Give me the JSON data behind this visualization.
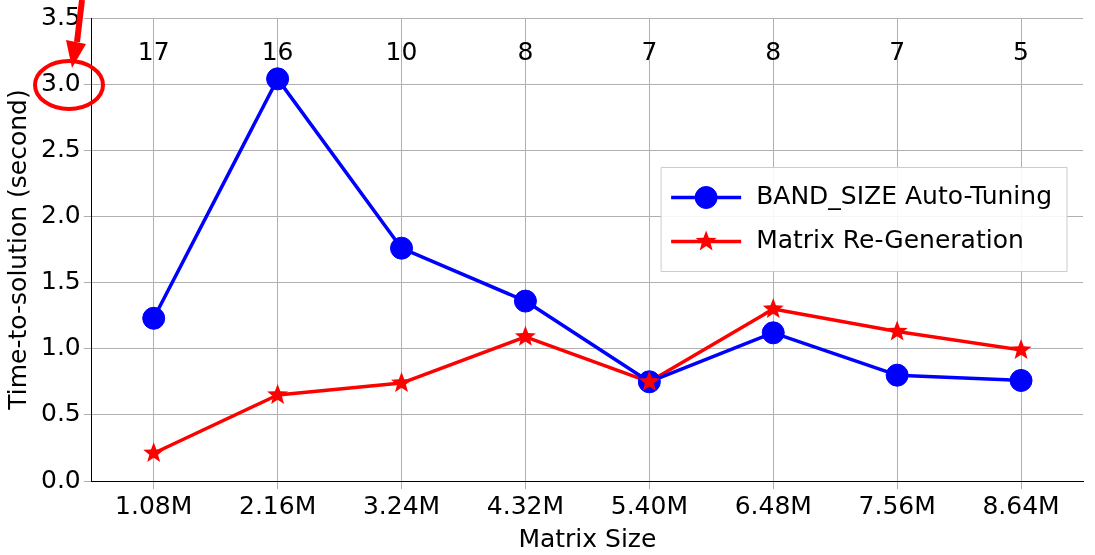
{
  "chart_data": {
    "type": "line",
    "xlabel": "Matrix Size",
    "ylabel": "Time-to-solution (second)",
    "categories": [
      "1.08M",
      "2.16M",
      "3.24M",
      "4.32M",
      "5.40M",
      "6.48M",
      "7.56M",
      "8.64M"
    ],
    "series": [
      {
        "name": "BAND_SIZE Auto-Tuning",
        "color": "#0000ff",
        "marker": "circle",
        "values": [
          1.23,
          3.04,
          1.76,
          1.36,
          0.75,
          1.12,
          0.8,
          0.76
        ]
      },
      {
        "name": "Matrix Re-Generation",
        "color": "#ff0000",
        "marker": "star",
        "values": [
          0.21,
          0.65,
          0.74,
          1.09,
          0.75,
          1.3,
          1.13,
          0.99
        ]
      }
    ],
    "ylim": [
      0,
      3.5
    ],
    "yticks": [
      {
        "value": 0,
        "label": "0.0"
      },
      {
        "value": 0.5,
        "label": "0.5"
      },
      {
        "value": 1,
        "label": "1.0"
      },
      {
        "value": 1.5,
        "label": "1.5"
      },
      {
        "value": 2,
        "label": "2.0"
      },
      {
        "value": 2.5,
        "label": "2.5"
      },
      {
        "value": 3,
        "label": "3.0"
      },
      {
        "value": 3.5,
        "label": "3.5"
      }
    ],
    "grid": true,
    "legend": "right",
    "line_style": "solid",
    "annotations": [
      "17",
      "16",
      "10",
      "8",
      "7",
      "8",
      "7",
      "5"
    ]
  }
}
